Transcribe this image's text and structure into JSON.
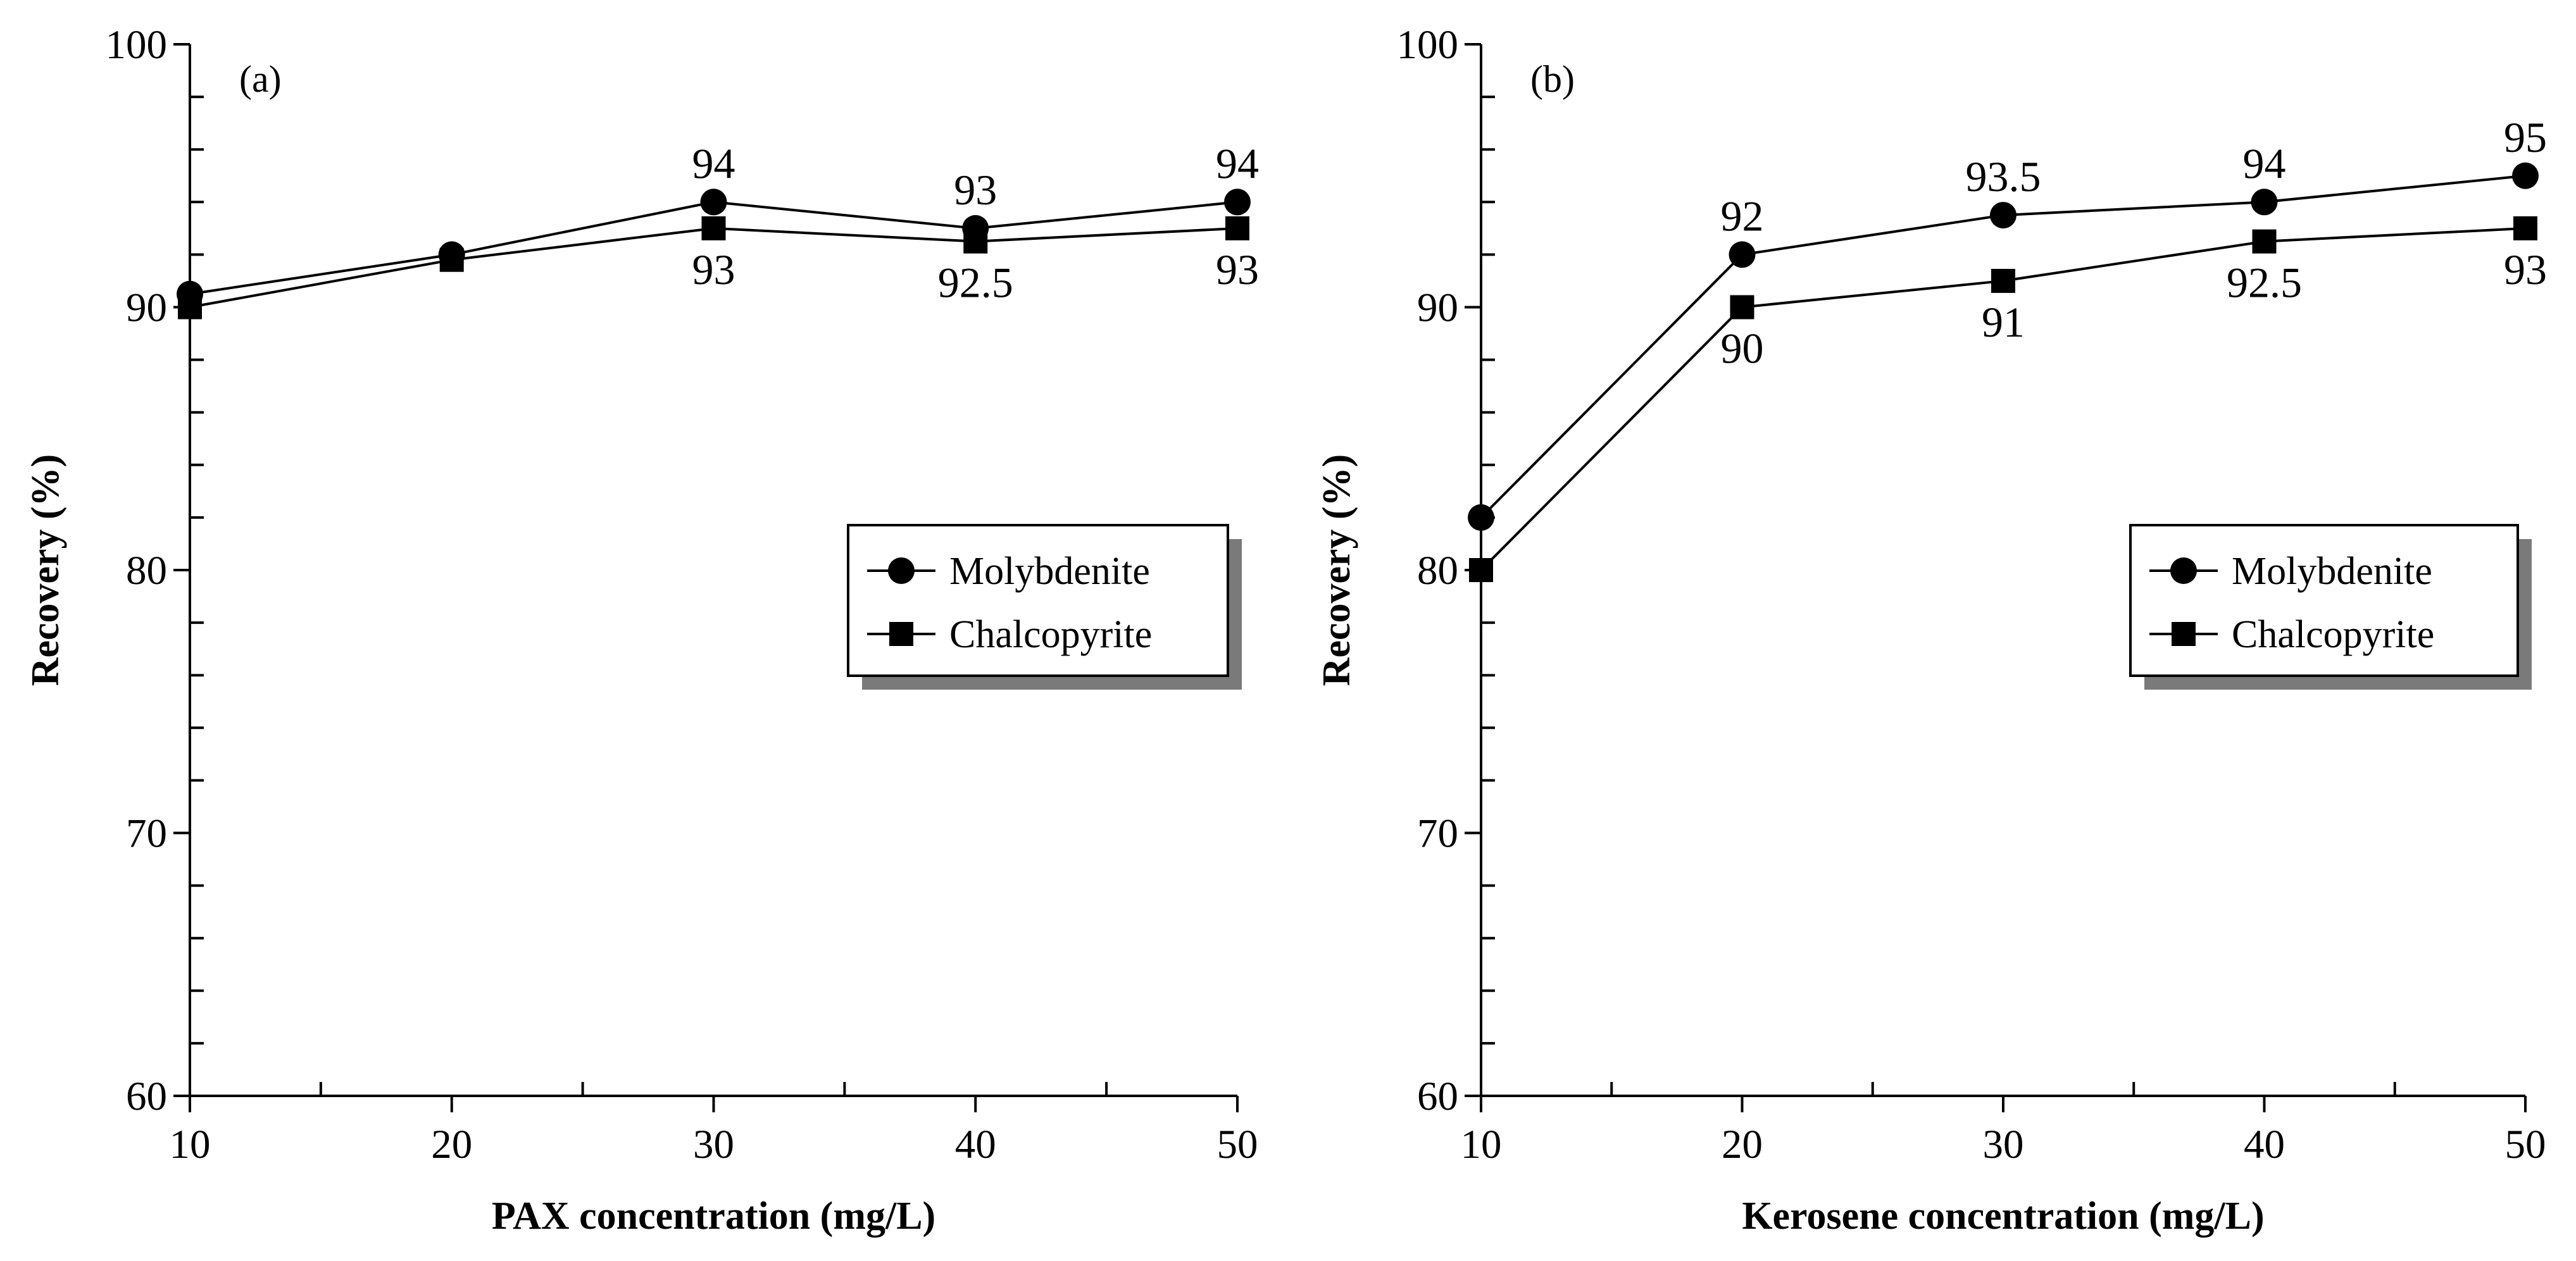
{
  "chart_data": [
    {
      "type": "line",
      "panel_label": "(a)",
      "xlabel": "PAX concentration (mg/L)",
      "ylabel": "Recovery (%)",
      "xlim": [
        10,
        50
      ],
      "ylim": [
        60,
        100
      ],
      "x_ticks": [
        10,
        20,
        30,
        40,
        50
      ],
      "y_ticks": [
        60,
        70,
        80,
        90,
        100
      ],
      "x_tick_labels": [
        "10",
        "20",
        "30",
        "40",
        "50"
      ],
      "y_tick_labels": [
        "60",
        "70",
        "80",
        "90",
        "100"
      ],
      "legend_position": "middle-right",
      "series": [
        {
          "name": "Molybdenite",
          "marker": "circle",
          "x": [
            10,
            20,
            30,
            40,
            50
          ],
          "values": [
            90.5,
            92,
            94,
            93,
            94
          ],
          "labels": [
            "",
            "",
            "94",
            "93",
            "94"
          ],
          "label_side": "above"
        },
        {
          "name": "Chalcopyrite",
          "marker": "square",
          "x": [
            10,
            20,
            30,
            40,
            50
          ],
          "values": [
            90,
            91.8,
            93,
            92.5,
            93
          ],
          "labels": [
            "",
            "",
            "93",
            "92.5",
            "93"
          ],
          "label_side": "below"
        }
      ]
    },
    {
      "type": "line",
      "panel_label": "(b)",
      "xlabel": "Kerosene concentration (mg/L)",
      "ylabel": "Recovery (%)",
      "xlim": [
        10,
        50
      ],
      "ylim": [
        60,
        100
      ],
      "x_ticks": [
        10,
        20,
        30,
        40,
        50
      ],
      "y_ticks": [
        60,
        70,
        80,
        90,
        100
      ],
      "x_tick_labels": [
        "10",
        "20",
        "30",
        "40",
        "50"
      ],
      "y_tick_labels": [
        "60",
        "70",
        "80",
        "90",
        "100"
      ],
      "legend_position": "middle-right",
      "series": [
        {
          "name": "Molybdenite",
          "marker": "circle",
          "x": [
            10,
            20,
            30,
            40,
            50
          ],
          "values": [
            82,
            92,
            93.5,
            94,
            95
          ],
          "labels": [
            "",
            "92",
            "93.5",
            "94",
            "95"
          ],
          "label_side": "above"
        },
        {
          "name": "Chalcopyrite",
          "marker": "square",
          "x": [
            10,
            20,
            30,
            40,
            50
          ],
          "values": [
            80,
            90,
            91,
            92.5,
            93
          ],
          "labels": [
            "",
            "90",
            "91",
            "92.5",
            "93"
          ],
          "label_side": "below"
        }
      ]
    }
  ]
}
